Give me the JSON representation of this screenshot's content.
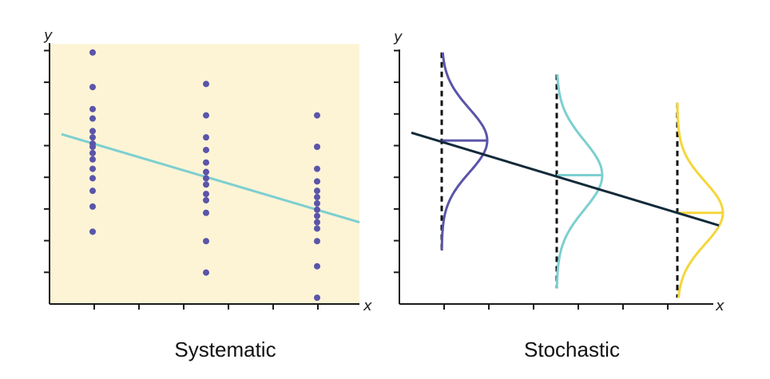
{
  "colors": {
    "background_left": "#fdf4d6",
    "axis": "#1a1a1a",
    "dots": "#5a55a8",
    "regression_left": "#7dcfd0",
    "regression_right": "#132a3a",
    "dashed": "#111111",
    "curve_1": "#5a55a8",
    "curve_2": "#7dcfd0",
    "curve_3": "#f5d63b"
  },
  "panels": [
    {
      "id": "systematic",
      "caption": "Systematic",
      "x_axis_label": "x",
      "y_axis_label": "y",
      "columns": [
        {
          "x": 1,
          "y_values": [
            8,
            6.9,
            6.2,
            5.9,
            5.5,
            5.3,
            5.1,
            5.0,
            4.8,
            4.6,
            4.3,
            4.0,
            3.6,
            3.1,
            2.3
          ]
        },
        {
          "x": 4,
          "y_values": [
            7.0,
            6.0,
            5.3,
            4.9,
            4.5,
            4.2,
            4.0,
            3.8,
            3.5,
            3.3,
            2.9,
            2.0,
            1.0
          ]
        },
        {
          "x": 7,
          "y_values": [
            6.0,
            5.0,
            4.3,
            3.9,
            3.6,
            3.4,
            3.2,
            3.0,
            2.8,
            2.6,
            2.4,
            2.0,
            1.2,
            0.2
          ]
        }
      ],
      "trend_line": {
        "x1": 0.3,
        "y1": 5.4,
        "x2": 8.3,
        "y2": 2.6
      }
    },
    {
      "id": "stochastic",
      "caption": "Stochastic",
      "x_axis_label": "x",
      "y_axis_label": "y",
      "distributions": [
        {
          "x": 1,
          "mean": 5.2,
          "y_min": 1.7,
          "y_max": 8.0
        },
        {
          "x": 4.3,
          "mean": 4.1,
          "y_min": 0.5,
          "y_max": 7.3
        },
        {
          "x": 7.5,
          "mean": 2.9,
          "y_min": 0.2,
          "y_max": 6.4
        }
      ],
      "trend_line": {
        "x1": 0.3,
        "y1": 5.5,
        "x2": 8.3,
        "y2": 2.5
      }
    }
  ]
}
